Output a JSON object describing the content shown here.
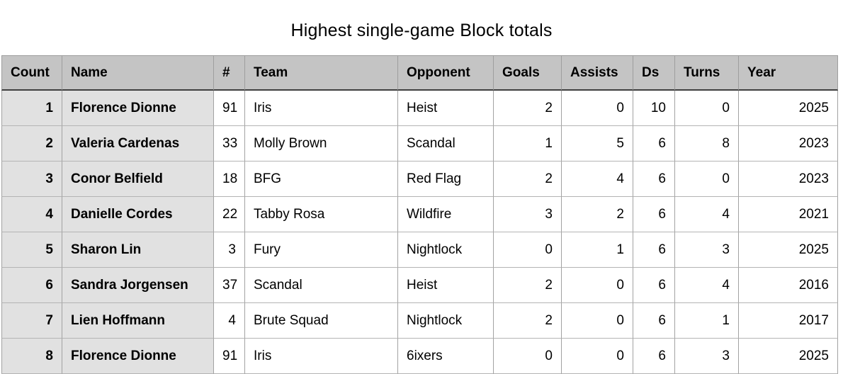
{
  "title": "Highest single-game Block totals",
  "chart_data": {
    "type": "table",
    "title": "Highest single-game Block totals",
    "columns": [
      {
        "key": "count",
        "label": "Count"
      },
      {
        "key": "name",
        "label": "Name"
      },
      {
        "key": "number",
        "label": "#"
      },
      {
        "key": "team",
        "label": "Team"
      },
      {
        "key": "opponent",
        "label": "Opponent"
      },
      {
        "key": "goals",
        "label": "Goals"
      },
      {
        "key": "assists",
        "label": "Assists"
      },
      {
        "key": "ds",
        "label": "Ds"
      },
      {
        "key": "turns",
        "label": "Turns"
      },
      {
        "key": "year",
        "label": "Year"
      }
    ],
    "rows": [
      {
        "count": "1",
        "name": "Florence Dionne",
        "number": "91",
        "team": "Iris",
        "opponent": "Heist",
        "goals": "2",
        "assists": "0",
        "ds": "10",
        "turns": "0",
        "year": "2025"
      },
      {
        "count": "2",
        "name": "Valeria Cardenas",
        "number": "33",
        "team": "Molly Brown",
        "opponent": "Scandal",
        "goals": "1",
        "assists": "5",
        "ds": "6",
        "turns": "8",
        "year": "2023"
      },
      {
        "count": "3",
        "name": "Conor Belfield",
        "number": "18",
        "team": "BFG",
        "opponent": "Red Flag",
        "goals": "2",
        "assists": "4",
        "ds": "6",
        "turns": "0",
        "year": "2023"
      },
      {
        "count": "4",
        "name": "Danielle Cordes",
        "number": "22",
        "team": "Tabby Rosa",
        "opponent": "Wildfire",
        "goals": "3",
        "assists": "2",
        "ds": "6",
        "turns": "4",
        "year": "2021"
      },
      {
        "count": "5",
        "name": "Sharon Lin",
        "number": "3",
        "team": "Fury",
        "opponent": "Nightlock",
        "goals": "0",
        "assists": "1",
        "ds": "6",
        "turns": "3",
        "year": "2025"
      },
      {
        "count": "6",
        "name": "Sandra Jorgensen",
        "number": "37",
        "team": "Scandal",
        "opponent": "Heist",
        "goals": "2",
        "assists": "0",
        "ds": "6",
        "turns": "4",
        "year": "2016"
      },
      {
        "count": "7",
        "name": "Lien Hoffmann",
        "number": "4",
        "team": "Brute Squad",
        "opponent": "Nightlock",
        "goals": "2",
        "assists": "0",
        "ds": "6",
        "turns": "1",
        "year": "2017"
      },
      {
        "count": "8",
        "name": "Florence Dionne",
        "number": "91",
        "team": "Iris",
        "opponent": "6ixers",
        "goals": "0",
        "assists": "0",
        "ds": "6",
        "turns": "3",
        "year": "2025"
      }
    ],
    "layout": {
      "header_align": "left",
      "numeric_align": "right",
      "emphasized_columns": [
        "count",
        "name"
      ]
    }
  },
  "colors": {
    "header_bg": "#c4c4c4",
    "label_column_bg": "#e1e1e1",
    "grid_line": "#a2a2a2",
    "row_separator": "#b4b4b4",
    "header_underline": "#404040",
    "text": "#000000",
    "background": "#ffffff"
  }
}
